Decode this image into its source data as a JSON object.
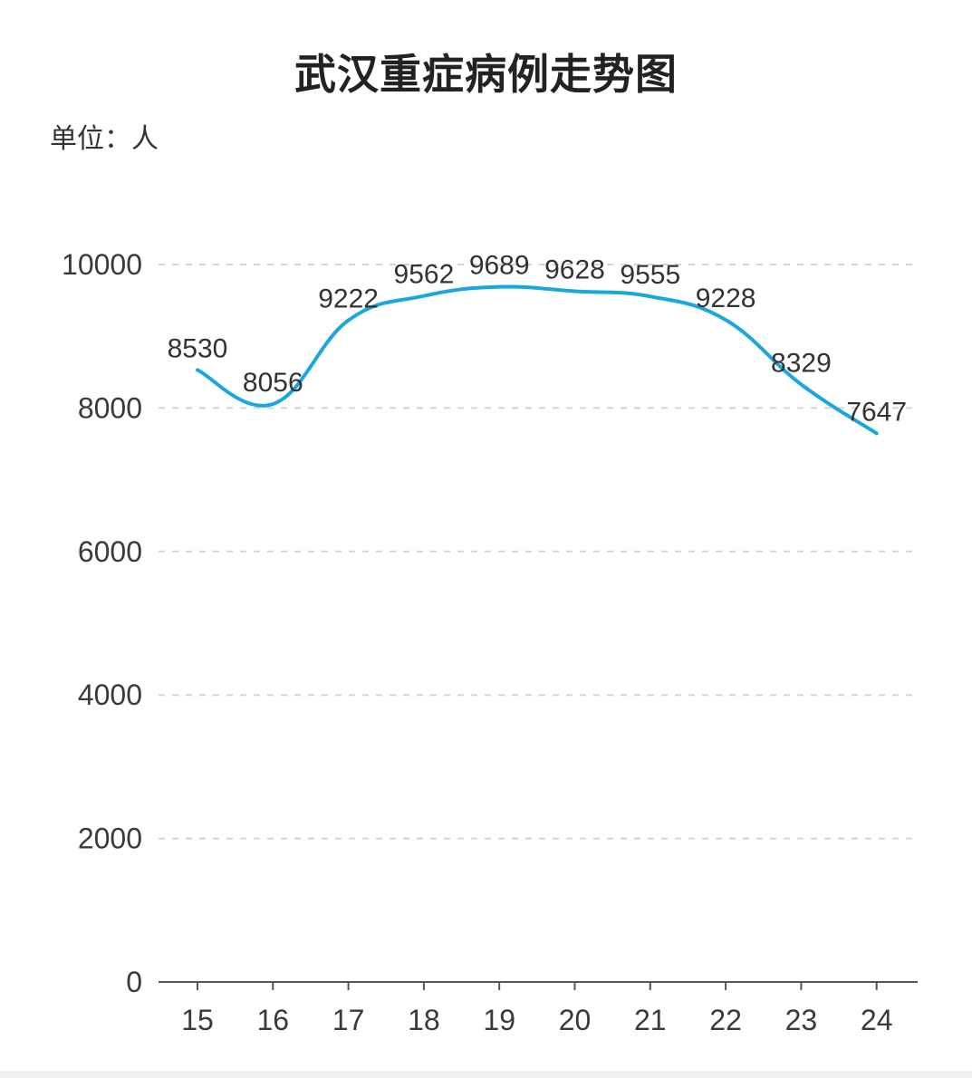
{
  "chart_data": {
    "type": "line",
    "title": "武汉重症病例走势图",
    "unit": "单位：人",
    "categories": [
      "15",
      "16",
      "17",
      "18",
      "19",
      "20",
      "21",
      "22",
      "23",
      "24"
    ],
    "series": [
      {
        "values": [
          8530,
          8056,
          9222,
          9562,
          9689,
          9628,
          9555,
          9228,
          8329,
          7647
        ],
        "color": "#1aa7dc"
      }
    ],
    "yticks": [
      0,
      2000,
      4000,
      6000,
      8000,
      10000
    ],
    "ylim": [
      0,
      10000
    ],
    "grid": true,
    "grid_style": "dashed",
    "smooth": true,
    "data_labels": true
  }
}
